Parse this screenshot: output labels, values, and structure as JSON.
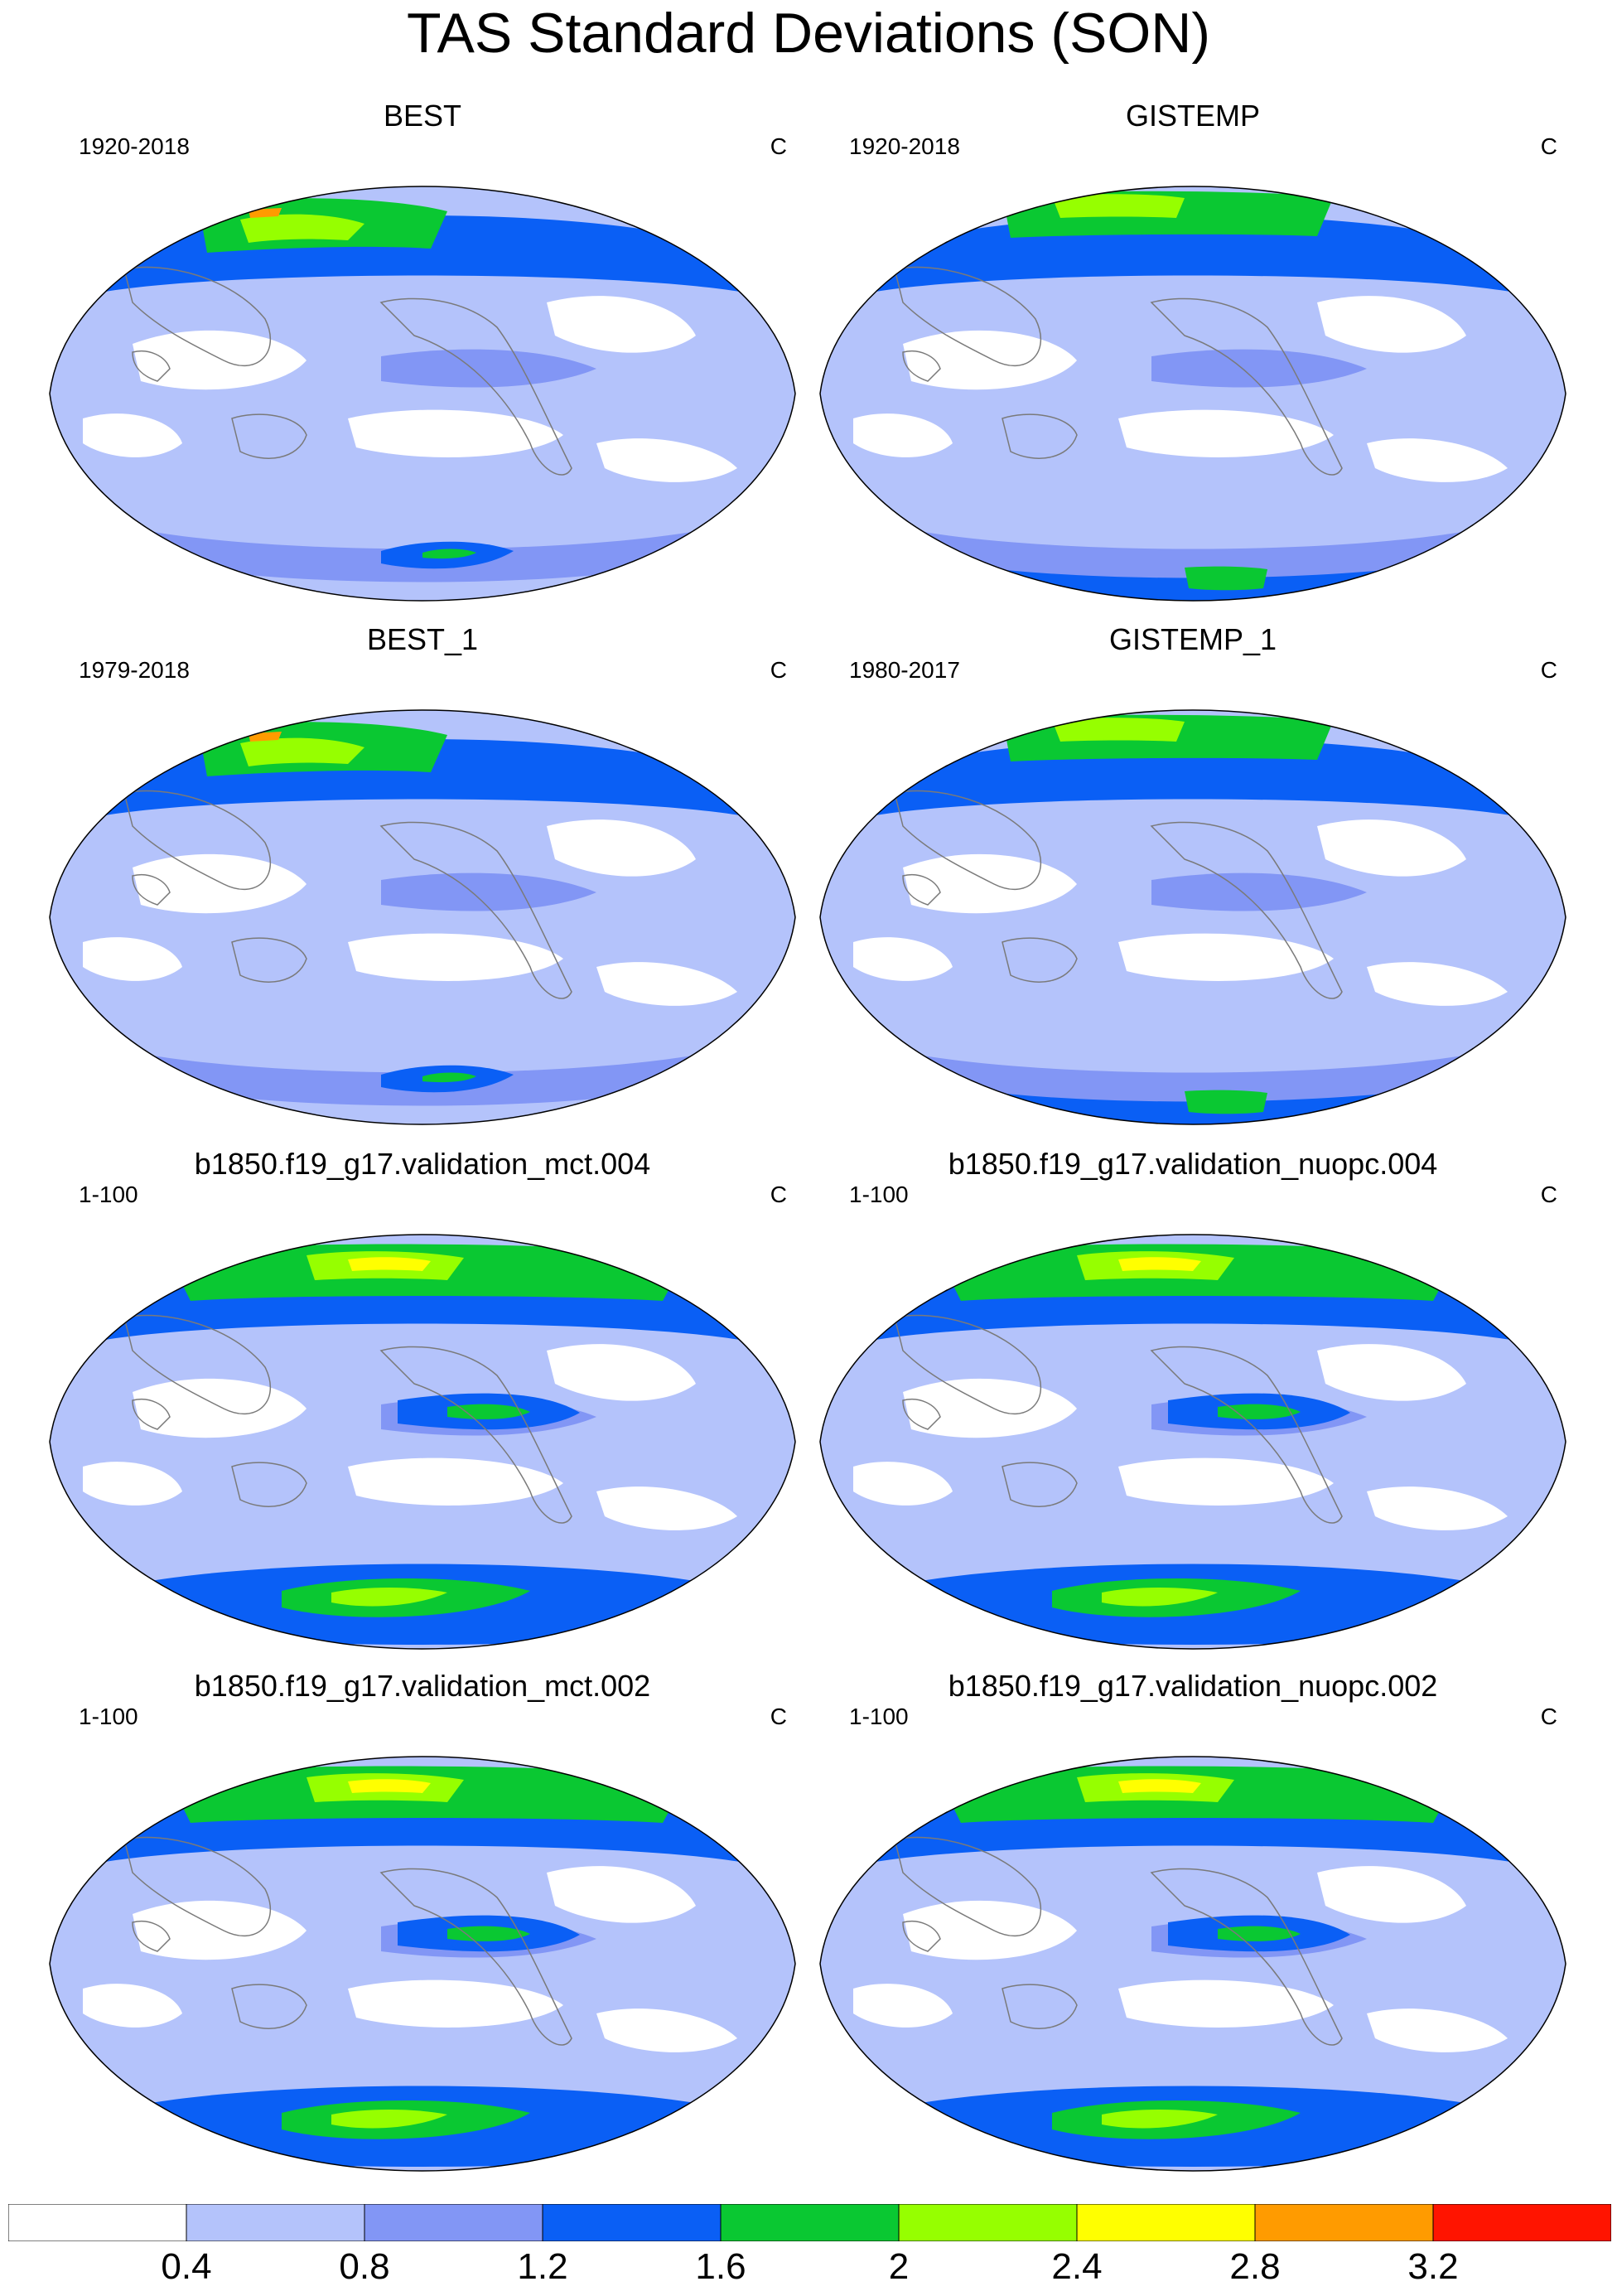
{
  "title": "TAS Standard Deviations (SON)",
  "panels": [
    {
      "title": "BEST",
      "period": "1920-2018",
      "units": "C",
      "variant": 0
    },
    {
      "title": "GISTEMP",
      "period": "1920-2018",
      "units": "C",
      "variant": 1
    },
    {
      "title": "BEST_1",
      "period": "1979-2018",
      "units": "C",
      "variant": 0
    },
    {
      "title": "GISTEMP_1",
      "period": "1980-2017",
      "units": "C",
      "variant": 1
    },
    {
      "title": "b1850.f19_g17.validation_mct.004",
      "period": "1-100",
      "units": "C",
      "variant": 2
    },
    {
      "title": "b1850.f19_g17.validation_nuopc.004",
      "period": "1-100",
      "units": "C",
      "variant": 2
    },
    {
      "title": "b1850.f19_g17.validation_mct.002",
      "period": "1-100",
      "units": "C",
      "variant": 2
    },
    {
      "title": "b1850.f19_g17.validation_nuopc.002",
      "period": "1-100",
      "units": "C",
      "variant": 2
    }
  ],
  "colorbar": {
    "colors": [
      "#ffffff",
      "#b4c3fb",
      "#8296f5",
      "#0a5ff5",
      "#0ac832",
      "#96ff00",
      "#ffff00",
      "#ff9b00",
      "#ff1400"
    ],
    "labels": [
      "0.4",
      "0.8",
      "1.2",
      "1.6",
      "2",
      "2.4",
      "2.8",
      "3.2"
    ]
  }
}
